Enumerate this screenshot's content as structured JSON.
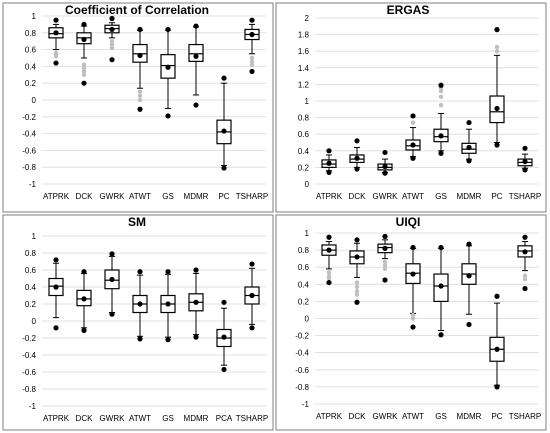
{
  "colors": {
    "box_stroke": "#000000",
    "outlier_black": "#000000",
    "outlier_gray": "#bfbfbf",
    "grid": "#d9d9d9",
    "panel_border": "#7f7f7f",
    "background": "#ffffff"
  },
  "chart_data": [
    {
      "type": "box",
      "title": "Coefficient of Correlation",
      "ylim": [
        -1,
        1
      ],
      "yticks": [
        -1,
        -0.8,
        -0.6,
        -0.4,
        -0.2,
        0,
        0.2,
        0.4,
        0.6,
        0.8,
        1
      ],
      "ytick_labels": [
        "-1",
        "-0.8",
        "-0.6",
        "-0.4",
        "-0.2",
        "0",
        "0.2",
        "0.4",
        "0.6",
        "0.8",
        "1"
      ],
      "grid": true,
      "categories": [
        "ATPRK",
        "DCK",
        "GWRK",
        "ATWT",
        "GS",
        "MDMR",
        "PC",
        "TSHARP"
      ],
      "boxes": [
        {
          "whisker_low": 0.6,
          "q1": 0.74,
          "median": 0.79,
          "q3": 0.86,
          "whisker_high": 0.9,
          "mean": 0.8,
          "min": 0.44,
          "max": 0.95,
          "gray_points": [
            0.56,
            0.54,
            0.52
          ]
        },
        {
          "whisker_low": 0.5,
          "q1": 0.67,
          "median": 0.74,
          "q3": 0.8,
          "whisker_high": 0.88,
          "mean": 0.72,
          "min": 0.2,
          "max": 0.9,
          "gray_points": [
            0.42,
            0.38,
            0.34,
            0.3
          ]
        },
        {
          "whisker_low": 0.74,
          "q1": 0.8,
          "median": 0.85,
          "q3": 0.89,
          "whisker_high": 0.92,
          "mean": 0.84,
          "min": 0.48,
          "max": 0.97,
          "gray_points": [
            0.7,
            0.66,
            0.62
          ]
        },
        {
          "whisker_low": 0.14,
          "q1": 0.45,
          "median": 0.55,
          "q3": 0.66,
          "whisker_high": 0.83,
          "mean": 0.53,
          "min": -0.11,
          "max": 0.84,
          "gray_points": [
            0.1,
            0.05,
            0.0
          ]
        },
        {
          "whisker_low": -0.1,
          "q1": 0.26,
          "median": 0.41,
          "q3": 0.54,
          "whisker_high": 0.83,
          "mean": 0.39,
          "min": -0.19,
          "max": 0.84,
          "gray_points": []
        },
        {
          "whisker_low": 0.06,
          "q1": 0.46,
          "median": 0.55,
          "q3": 0.66,
          "whisker_high": 0.87,
          "mean": 0.52,
          "min": -0.06,
          "max": 0.88,
          "gray_points": []
        },
        {
          "whisker_low": -0.78,
          "q1": -0.52,
          "median": -0.38,
          "q3": -0.24,
          "whisker_high": 0.2,
          "mean": -0.37,
          "min": -0.81,
          "max": 0.26,
          "gray_points": []
        },
        {
          "whisker_low": 0.55,
          "q1": 0.72,
          "median": 0.78,
          "q3": 0.84,
          "whisker_high": 0.9,
          "mean": 0.78,
          "min": 0.34,
          "max": 0.95,
          "gray_points": [
            0.5,
            0.46,
            0.42
          ]
        }
      ]
    },
    {
      "type": "box",
      "title": "ERGAS",
      "ylim": [
        0,
        2
      ],
      "yticks": [
        0,
        0.2,
        0.4,
        0.6,
        0.8,
        1,
        1.2,
        1.4,
        1.6,
        1.8,
        2
      ],
      "ytick_labels": [
        "0",
        "0.2",
        "0.4",
        "0.6",
        "0.8",
        "1",
        "1.2",
        "1.4",
        "1.6",
        "1.8",
        "2"
      ],
      "grid": true,
      "categories": [
        "ATPRK",
        "DCK",
        "GWRK",
        "ATWT",
        "GS",
        "MDMR",
        "PC",
        "TSHARP"
      ],
      "boxes": [
        {
          "whisker_low": 0.16,
          "q1": 0.2,
          "median": 0.24,
          "q3": 0.29,
          "whisker_high": 0.35,
          "mean": 0.25,
          "min": 0.14,
          "max": 0.4,
          "gray_points": []
        },
        {
          "whisker_low": 0.2,
          "q1": 0.26,
          "median": 0.3,
          "q3": 0.35,
          "whisker_high": 0.44,
          "mean": 0.31,
          "min": 0.18,
          "max": 0.52,
          "gray_points": []
        },
        {
          "whisker_low": 0.14,
          "q1": 0.17,
          "median": 0.2,
          "q3": 0.24,
          "whisker_high": 0.3,
          "mean": 0.21,
          "min": 0.13,
          "max": 0.38,
          "gray_points": []
        },
        {
          "whisker_low": 0.33,
          "q1": 0.41,
          "median": 0.46,
          "q3": 0.53,
          "whisker_high": 0.68,
          "mean": 0.47,
          "min": 0.31,
          "max": 0.82,
          "gray_points": [
            0.74
          ]
        },
        {
          "whisker_low": 0.4,
          "q1": 0.51,
          "median": 0.57,
          "q3": 0.66,
          "whisker_high": 0.85,
          "mean": 0.58,
          "min": 0.37,
          "max": 1.19,
          "gray_points": [
            0.95,
            1.05,
            1.12,
            1.16
          ]
        },
        {
          "whisker_low": 0.3,
          "q1": 0.37,
          "median": 0.42,
          "q3": 0.49,
          "whisker_high": 0.66,
          "mean": 0.44,
          "min": 0.28,
          "max": 0.74,
          "gray_points": []
        },
        {
          "whisker_low": 0.5,
          "q1": 0.74,
          "median": 0.87,
          "q3": 1.06,
          "whisker_high": 1.55,
          "mean": 0.91,
          "min": 0.47,
          "max": 1.86,
          "gray_points": [
            1.6,
            1.65
          ]
        },
        {
          "whisker_low": 0.19,
          "q1": 0.22,
          "median": 0.26,
          "q3": 0.3,
          "whisker_high": 0.36,
          "mean": 0.27,
          "min": 0.17,
          "max": 0.43,
          "gray_points": []
        }
      ]
    },
    {
      "type": "box",
      "title": "SM",
      "ylim": [
        -1,
        1
      ],
      "yticks": [
        -1,
        -0.8,
        -0.6,
        -0.4,
        -0.2,
        0,
        0.2,
        0.4,
        0.6,
        0.8,
        1
      ],
      "ytick_labels": [
        "-1",
        "-0.8",
        "-0.6",
        "-0.4",
        "-0.2",
        "0",
        "0.2",
        "0.4",
        "0.6",
        "0.8",
        "1"
      ],
      "grid": true,
      "categories": [
        "ATPRK",
        "DCK",
        "GWRK",
        "ATWT",
        "GS",
        "MDMR",
        "PCA",
        "TSHARP"
      ],
      "boxes": [
        {
          "whisker_low": 0.04,
          "q1": 0.3,
          "median": 0.41,
          "q3": 0.5,
          "whisker_high": 0.68,
          "mean": 0.4,
          "min": -0.08,
          "max": 0.72,
          "gray_points": []
        },
        {
          "whisker_low": -0.08,
          "q1": 0.18,
          "median": 0.26,
          "q3": 0.36,
          "whisker_high": 0.56,
          "mean": 0.26,
          "min": -0.11,
          "max": 0.58,
          "gray_points": []
        },
        {
          "whisker_low": 0.1,
          "q1": 0.38,
          "median": 0.48,
          "q3": 0.6,
          "whisker_high": 0.76,
          "mean": 0.49,
          "min": 0.08,
          "max": 0.79,
          "gray_points": []
        },
        {
          "whisker_low": -0.18,
          "q1": 0.1,
          "median": 0.2,
          "q3": 0.3,
          "whisker_high": 0.54,
          "mean": 0.2,
          "min": -0.21,
          "max": 0.58,
          "gray_points": []
        },
        {
          "whisker_low": -0.19,
          "q1": 0.1,
          "median": 0.2,
          "q3": 0.3,
          "whisker_high": 0.55,
          "mean": 0.2,
          "min": -0.22,
          "max": 0.58,
          "gray_points": []
        },
        {
          "whisker_low": -0.16,
          "q1": 0.12,
          "median": 0.22,
          "q3": 0.32,
          "whisker_high": 0.56,
          "mean": 0.22,
          "min": -0.19,
          "max": 0.6,
          "gray_points": []
        },
        {
          "whisker_low": -0.52,
          "q1": -0.3,
          "median": -0.2,
          "q3": -0.1,
          "whisker_high": 0.15,
          "mean": -0.19,
          "min": -0.57,
          "max": 0.22,
          "gray_points": []
        },
        {
          "whisker_low": -0.04,
          "q1": 0.2,
          "median": 0.3,
          "q3": 0.4,
          "whisker_high": 0.62,
          "mean": 0.3,
          "min": -0.08,
          "max": 0.67,
          "gray_points": []
        }
      ]
    },
    {
      "type": "box",
      "title": "UIQI",
      "ylim": [
        -1,
        1
      ],
      "yticks": [
        -1,
        -0.8,
        -0.6,
        -0.4,
        -0.2,
        0,
        0.2,
        0.4,
        0.6,
        0.8,
        1
      ],
      "ytick_labels": [
        "-1",
        "-0.8",
        "-0.6",
        "-0.4",
        "-0.2",
        "0",
        "0.2",
        "0.4",
        "0.6",
        "0.8",
        "1"
      ],
      "grid": true,
      "categories": [
        "ATPRK",
        "DCK",
        "GWRK",
        "ATWT",
        "GS",
        "MDMR",
        "PC",
        "TSHARP"
      ],
      "boxes": [
        {
          "whisker_low": 0.58,
          "q1": 0.74,
          "median": 0.8,
          "q3": 0.86,
          "whisker_high": 0.9,
          "mean": 0.8,
          "min": 0.42,
          "max": 0.95,
          "gray_points": [
            0.54,
            0.5,
            0.47
          ]
        },
        {
          "whisker_low": 0.48,
          "q1": 0.64,
          "median": 0.72,
          "q3": 0.79,
          "whisker_high": 0.88,
          "mean": 0.72,
          "min": 0.19,
          "max": 0.92,
          "gray_points": [
            0.42,
            0.37,
            0.32,
            0.28
          ]
        },
        {
          "whisker_low": 0.7,
          "q1": 0.77,
          "median": 0.83,
          "q3": 0.87,
          "whisker_high": 0.92,
          "mean": 0.82,
          "min": 0.45,
          "max": 0.96,
          "gray_points": [
            0.66,
            0.62,
            0.58
          ]
        },
        {
          "whisker_low": 0.06,
          "q1": 0.41,
          "median": 0.53,
          "q3": 0.64,
          "whisker_high": 0.82,
          "mean": 0.52,
          "min": -0.1,
          "max": 0.83,
          "gray_points": [
            0.04,
            0.0
          ]
        },
        {
          "whisker_low": -0.14,
          "q1": 0.2,
          "median": 0.38,
          "q3": 0.52,
          "whisker_high": 0.82,
          "mean": 0.38,
          "min": -0.19,
          "max": 0.83,
          "gray_points": []
        },
        {
          "whisker_low": 0.05,
          "q1": 0.4,
          "median": 0.52,
          "q3": 0.64,
          "whisker_high": 0.85,
          "mean": 0.5,
          "min": -0.07,
          "max": 0.87,
          "gray_points": []
        },
        {
          "whisker_low": -0.78,
          "q1": -0.5,
          "median": -0.36,
          "q3": -0.22,
          "whisker_high": 0.18,
          "mean": -0.36,
          "min": -0.8,
          "max": 0.26,
          "gray_points": []
        },
        {
          "whisker_low": 0.56,
          "q1": 0.72,
          "median": 0.79,
          "q3": 0.85,
          "whisker_high": 0.9,
          "mean": 0.78,
          "min": 0.35,
          "max": 0.95,
          "gray_points": [
            0.5,
            0.46
          ]
        }
      ]
    }
  ]
}
